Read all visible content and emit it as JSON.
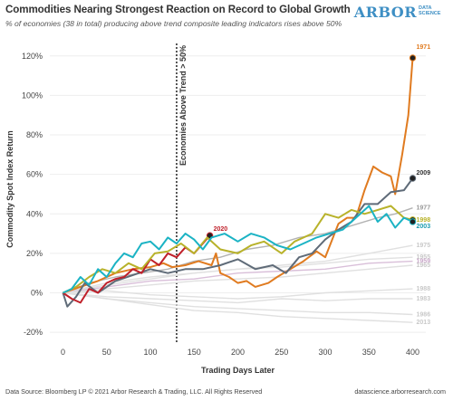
{
  "header": {
    "title": "Commodities Nearing Strongest Reaction on Record to Global Growth",
    "subtitle": "% of economies (38 in total) producing above trend composite leading indicators rises above 50%",
    "brand_main": "ARBOR",
    "brand_sub": "DATA SCIENCE"
  },
  "footer": {
    "source": "Data Source: Bloomberg LP © 2021 Arbor Research & Trading, LLC. All Rights Reserved",
    "site": "datascience.arborresearch.com"
  },
  "chart_data": {
    "type": "line",
    "xlabel": "Trading Days Later",
    "ylabel": "Commodity Spot Index Return",
    "xlim": [
      -15,
      415
    ],
    "ylim": [
      -0.25,
      1.3
    ],
    "x_ticks": [
      0,
      50,
      100,
      150,
      200,
      250,
      300,
      350,
      400
    ],
    "x_tick_labels": [
      "0",
      "50",
      "100",
      "150",
      "200",
      "250",
      "300",
      "350",
      "400"
    ],
    "y_ticks": [
      -0.2,
      0,
      0.2,
      0.4,
      0.6,
      0.8,
      1.0,
      1.2
    ],
    "y_tick_labels": [
      "-20%",
      "0%",
      "20%",
      "40%",
      "60%",
      "80%",
      "100%",
      "120%"
    ],
    "grid": "horizontal",
    "annotation": {
      "text": "Economies Above Trend > 50%",
      "x": 130
    },
    "series": [
      {
        "name": "1971",
        "color": "#e07b20",
        "end_marker": true,
        "label_color": "#e07b20",
        "label_dy": -12,
        "points": [
          [
            0,
            0
          ],
          [
            20,
            0.03
          ],
          [
            40,
            0.06
          ],
          [
            60,
            0.1
          ],
          [
            80,
            0.12
          ],
          [
            100,
            0.13
          ],
          [
            115,
            0.15
          ],
          [
            125,
            0.13
          ],
          [
            140,
            0.14
          ],
          [
            155,
            0.16
          ],
          [
            170,
            0.14
          ],
          [
            175,
            0.2
          ],
          [
            180,
            0.1
          ],
          [
            190,
            0.08
          ],
          [
            200,
            0.05
          ],
          [
            210,
            0.06
          ],
          [
            220,
            0.03
          ],
          [
            235,
            0.05
          ],
          [
            245,
            0.08
          ],
          [
            260,
            0.12
          ],
          [
            275,
            0.16
          ],
          [
            290,
            0.21
          ],
          [
            300,
            0.18
          ],
          [
            315,
            0.35
          ],
          [
            325,
            0.38
          ],
          [
            335,
            0.38
          ],
          [
            345,
            0.52
          ],
          [
            355,
            0.64
          ],
          [
            365,
            0.61
          ],
          [
            375,
            0.59
          ],
          [
            380,
            0.5
          ],
          [
            388,
            0.7
          ],
          [
            395,
            0.9
          ],
          [
            400,
            1.19
          ]
        ]
      },
      {
        "name": "2009",
        "color": "#5f6b78",
        "end_marker": true,
        "label_color": "#333333",
        "label_dy": -6,
        "points": [
          [
            0,
            0
          ],
          [
            5,
            -0.07
          ],
          [
            15,
            -0.02
          ],
          [
            25,
            0.05
          ],
          [
            40,
            0.0
          ],
          [
            60,
            0.06
          ],
          [
            80,
            0.09
          ],
          [
            100,
            0.12
          ],
          [
            120,
            0.1
          ],
          [
            140,
            0.12
          ],
          [
            160,
            0.12
          ],
          [
            180,
            0.14
          ],
          [
            200,
            0.17
          ],
          [
            220,
            0.12
          ],
          [
            240,
            0.14
          ],
          [
            255,
            0.1
          ],
          [
            270,
            0.18
          ],
          [
            285,
            0.2
          ],
          [
            300,
            0.27
          ],
          [
            315,
            0.32
          ],
          [
            330,
            0.36
          ],
          [
            345,
            0.45
          ],
          [
            360,
            0.45
          ],
          [
            375,
            0.51
          ],
          [
            390,
            0.52
          ],
          [
            400,
            0.58
          ]
        ]
      },
      {
        "name": "2020",
        "color": "#c0202a",
        "end_marker": true,
        "label_color": "#c0202a",
        "label_dy": -7,
        "points": [
          [
            0,
            0
          ],
          [
            10,
            -0.03
          ],
          [
            20,
            -0.05
          ],
          [
            30,
            0.02
          ],
          [
            40,
            0.0
          ],
          [
            50,
            0.05
          ],
          [
            60,
            0.07
          ],
          [
            70,
            0.08
          ],
          [
            80,
            0.12
          ],
          [
            90,
            0.1
          ],
          [
            100,
            0.17
          ],
          [
            110,
            0.14
          ],
          [
            120,
            0.2
          ],
          [
            130,
            0.18
          ],
          [
            140,
            0.23
          ],
          [
            150,
            0.2
          ],
          [
            160,
            0.25
          ],
          [
            168,
            0.29
          ]
        ]
      },
      {
        "name": "1977",
        "color": "#b3b3b3",
        "end_marker": false,
        "label_color": "#999999",
        "label_dy": 0,
        "points": [
          [
            0,
            0
          ],
          [
            30,
            0.05
          ],
          [
            60,
            0.08
          ],
          [
            90,
            0.1
          ],
          [
            120,
            0.12
          ],
          [
            150,
            0.16
          ],
          [
            180,
            0.18
          ],
          [
            210,
            0.22
          ],
          [
            240,
            0.24
          ],
          [
            270,
            0.28
          ],
          [
            300,
            0.3
          ],
          [
            330,
            0.34
          ],
          [
            360,
            0.38
          ],
          [
            380,
            0.4
          ],
          [
            400,
            0.43
          ]
        ]
      },
      {
        "name": "1998",
        "color": "#b8b22a",
        "end_marker": true,
        "label_color": "#b8b22a",
        "label_dy": 0,
        "points": [
          [
            0,
            0
          ],
          [
            15,
            0.03
          ],
          [
            30,
            0.08
          ],
          [
            45,
            0.12
          ],
          [
            60,
            0.1
          ],
          [
            75,
            0.15
          ],
          [
            90,
            0.12
          ],
          [
            105,
            0.2
          ],
          [
            120,
            0.21
          ],
          [
            135,
            0.25
          ],
          [
            150,
            0.2
          ],
          [
            165,
            0.28
          ],
          [
            180,
            0.22
          ],
          [
            200,
            0.2
          ],
          [
            215,
            0.24
          ],
          [
            230,
            0.26
          ],
          [
            250,
            0.2
          ],
          [
            265,
            0.26
          ],
          [
            285,
            0.3
          ],
          [
            300,
            0.4
          ],
          [
            315,
            0.38
          ],
          [
            330,
            0.42
          ],
          [
            345,
            0.4
          ],
          [
            360,
            0.42
          ],
          [
            375,
            0.44
          ],
          [
            390,
            0.38
          ],
          [
            400,
            0.37
          ]
        ]
      },
      {
        "name": "2003",
        "color": "#1bb3c4",
        "end_marker": true,
        "label_color": "#1b9cb0",
        "label_dy": 5,
        "points": [
          [
            0,
            0
          ],
          [
            10,
            0.02
          ],
          [
            20,
            0.08
          ],
          [
            30,
            0.04
          ],
          [
            40,
            0.12
          ],
          [
            50,
            0.08
          ],
          [
            60,
            0.15
          ],
          [
            70,
            0.2
          ],
          [
            80,
            0.18
          ],
          [
            90,
            0.25
          ],
          [
            100,
            0.26
          ],
          [
            110,
            0.22
          ],
          [
            120,
            0.28
          ],
          [
            130,
            0.25
          ],
          [
            140,
            0.3
          ],
          [
            150,
            0.27
          ],
          [
            160,
            0.22
          ],
          [
            170,
            0.28
          ],
          [
            185,
            0.3
          ],
          [
            200,
            0.26
          ],
          [
            215,
            0.3
          ],
          [
            230,
            0.28
          ],
          [
            245,
            0.24
          ],
          [
            260,
            0.22
          ],
          [
            275,
            0.25
          ],
          [
            290,
            0.28
          ],
          [
            305,
            0.3
          ],
          [
            320,
            0.32
          ],
          [
            335,
            0.38
          ],
          [
            350,
            0.44
          ],
          [
            360,
            0.36
          ],
          [
            370,
            0.4
          ],
          [
            380,
            0.33
          ],
          [
            390,
            0.38
          ],
          [
            400,
            0.36
          ]
        ]
      },
      {
        "name": "1975",
        "color": "#e0e0e0",
        "end_marker": false,
        "label_color": "#c9c9c9",
        "label_dy": 0,
        "points": [
          [
            0,
            0
          ],
          [
            50,
            0.05
          ],
          [
            100,
            0.08
          ],
          [
            150,
            0.1
          ],
          [
            200,
            0.12
          ],
          [
            250,
            0.14
          ],
          [
            300,
            0.16
          ],
          [
            350,
            0.2
          ],
          [
            400,
            0.24
          ]
        ]
      },
      {
        "name": "1955",
        "color": "#e0e0e0",
        "end_marker": false,
        "label_color": "#c9c9c9",
        "label_dy": 0,
        "points": [
          [
            0,
            0
          ],
          [
            50,
            0.04
          ],
          [
            100,
            0.07
          ],
          [
            150,
            0.1
          ],
          [
            200,
            0.12
          ],
          [
            250,
            0.13
          ],
          [
            300,
            0.15
          ],
          [
            350,
            0.17
          ],
          [
            400,
            0.18
          ]
        ]
      },
      {
        "name": "1959",
        "color": "#d9bfd9",
        "end_marker": false,
        "label_color": "#c9a8c9",
        "label_dy": 0,
        "points": [
          [
            0,
            0
          ],
          [
            50,
            0.03
          ],
          [
            100,
            0.06
          ],
          [
            150,
            0.07
          ],
          [
            200,
            0.1
          ],
          [
            250,
            0.11
          ],
          [
            300,
            0.12
          ],
          [
            350,
            0.15
          ],
          [
            400,
            0.16
          ]
        ]
      },
      {
        "name": "1965",
        "color": "#e0e0e0",
        "end_marker": false,
        "label_color": "#c9c9c9",
        "label_dy": 0,
        "points": [
          [
            0,
            0
          ],
          [
            50,
            0.02
          ],
          [
            100,
            0.04
          ],
          [
            150,
            0.06
          ],
          [
            200,
            0.07
          ],
          [
            250,
            0.08
          ],
          [
            300,
            0.1
          ],
          [
            350,
            0.12
          ],
          [
            400,
            0.14
          ]
        ]
      },
      {
        "name": "1988",
        "color": "#e0e0e0",
        "end_marker": false,
        "label_color": "#c9c9c9",
        "label_dy": 0,
        "points": [
          [
            0,
            0
          ],
          [
            50,
            0.01
          ],
          [
            100,
            -0.01
          ],
          [
            150,
            -0.02
          ],
          [
            200,
            -0.03
          ],
          [
            250,
            -0.02
          ],
          [
            300,
            0.0
          ],
          [
            350,
            0.01
          ],
          [
            400,
            0.02
          ]
        ]
      },
      {
        "name": "1983",
        "color": "#e0e0e0",
        "end_marker": false,
        "label_color": "#c9c9c9",
        "label_dy": 0,
        "points": [
          [
            0,
            0
          ],
          [
            50,
            -0.02
          ],
          [
            100,
            -0.03
          ],
          [
            150,
            -0.04
          ],
          [
            200,
            -0.05
          ],
          [
            250,
            -0.03
          ],
          [
            300,
            -0.04
          ],
          [
            350,
            -0.03
          ],
          [
            400,
            -0.03
          ]
        ]
      },
      {
        "name": "1986",
        "color": "#e0e0e0",
        "end_marker": false,
        "label_color": "#c9c9c9",
        "label_dy": 0,
        "points": [
          [
            0,
            0
          ],
          [
            50,
            -0.03
          ],
          [
            100,
            -0.05
          ],
          [
            150,
            -0.07
          ],
          [
            200,
            -0.08
          ],
          [
            250,
            -0.09
          ],
          [
            300,
            -0.1
          ],
          [
            350,
            -0.1
          ],
          [
            400,
            -0.11
          ]
        ]
      },
      {
        "name": "2013",
        "color": "#e0e0e0",
        "end_marker": false,
        "label_color": "#c9c9c9",
        "label_dy": 0,
        "points": [
          [
            0,
            0
          ],
          [
            50,
            -0.03
          ],
          [
            100,
            -0.06
          ],
          [
            150,
            -0.09
          ],
          [
            200,
            -0.1
          ],
          [
            250,
            -0.12
          ],
          [
            300,
            -0.13
          ],
          [
            350,
            -0.14
          ],
          [
            400,
            -0.15
          ]
        ]
      }
    ]
  }
}
